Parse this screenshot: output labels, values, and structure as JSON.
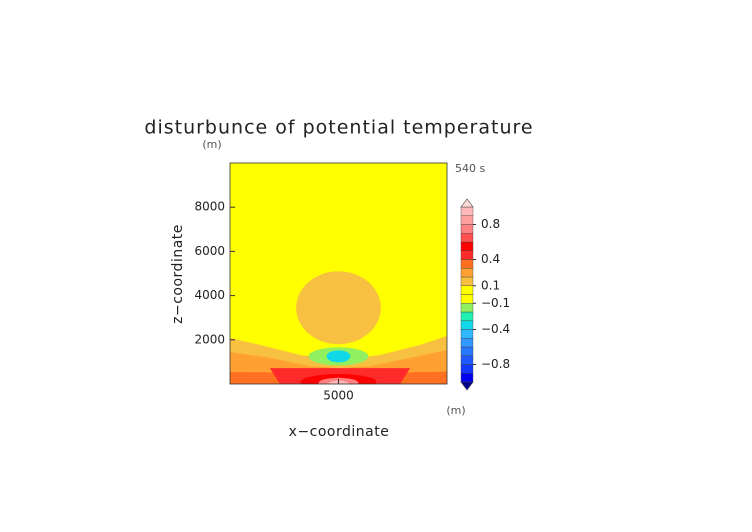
{
  "chart_data": {
    "type": "contour",
    "title": "disturbunce of potential temperature",
    "time_label": "540 s",
    "x_label": "x−coordinate",
    "y_label": "z−coordinate",
    "x_unit": "(m)",
    "y_unit": "(m)",
    "xlim": [
      0,
      10000
    ],
    "ylim": [
      0,
      10000
    ],
    "xticks": [
      5000
    ],
    "yticks": [
      2000,
      4000,
      6000,
      8000
    ],
    "colorbar": {
      "range": [
        -1,
        1
      ],
      "levels": [
        -1,
        -0.9,
        -0.8,
        -0.7,
        -0.6,
        -0.5,
        -0.4,
        -0.3,
        -0.2,
        -0.1,
        0,
        0.1,
        0.2,
        0.3,
        0.4,
        0.5,
        0.6,
        0.7,
        0.8,
        0.9,
        1
      ],
      "colors": [
        "#0000f0",
        "#1038ff",
        "#2058ff",
        "#2878ff",
        "#3098ff",
        "#30b8ff",
        "#10d8e8",
        "#20f0b0",
        "#90f060",
        "#ffff00",
        "#ffff00",
        "#f8c040",
        "#ffa030",
        "#ff7020",
        "#ff2a2a",
        "#ff0000",
        "#ff5050",
        "#ff8080",
        "#ffa0a0",
        "#ffb8b8"
      ],
      "over_color": "#ffd8d8",
      "under_color": "#000090",
      "ticks": [
        0.8,
        0.4,
        0.1,
        {
          "value": -0.1,
          "label": "−0.1"
        },
        {
          "value": -0.4,
          "label": "−0.4"
        },
        {
          "value": -0.8,
          "label": "−0.8"
        }
      ]
    },
    "regions": [
      {
        "value": 0.05,
        "polygon": {
          "x": [
            0,
            10000,
            10000,
            0
          ],
          "z": [
            0,
            0,
            10000,
            10000
          ]
        }
      },
      {
        "value": 0.15,
        "cx": 5000,
        "cz": 3450,
        "rx": 1950,
        "rz": 1650
      },
      {
        "value": 0.15,
        "polygon": {
          "x": [
            0,
            1380,
            3230,
            5070,
            6910,
            8760,
            10000,
            10000,
            0
          ],
          "z": [
            2080,
            1770,
            1310,
            1090,
            1310,
            1770,
            2170,
            0,
            0
          ]
        }
      },
      {
        "value": 0.25,
        "polygon": {
          "x": [
            0,
            1840,
            3690,
            5070,
            6450,
            8300,
            10000,
            10000,
            0
          ],
          "z": [
            1450,
            1180,
            810,
            720,
            810,
            1180,
            1540,
            0,
            0
          ]
        }
      },
      {
        "value": 0.35,
        "polygon": {
          "x": [
            0,
            2000,
            4000,
            5000,
            6000,
            8000,
            10000,
            10000,
            0
          ],
          "z": [
            540,
            520,
            330,
            280,
            330,
            520,
            560,
            0,
            0
          ]
        }
      },
      {
        "value": 0.45,
        "polygon": {
          "x": [
            1840,
            8300,
            7830,
            2300
          ],
          "z": [
            720,
            720,
            0,
            0
          ]
        }
      },
      {
        "value": 0.55,
        "cx": 5000,
        "cz": 90,
        "rx": 1750,
        "rz": 360
      },
      {
        "value": 0.75,
        "cx": 5000,
        "cz": 50,
        "rx": 920,
        "rz": 230
      },
      {
        "value": 0.95,
        "cx": 5000,
        "cz": 20,
        "rx": 460,
        "rz": 140
      },
      {
        "value": -0.15,
        "cx": 5000,
        "cz": 1250,
        "rx": 1380,
        "rz": 410
      },
      {
        "value": -0.35,
        "cx": 5000,
        "cz": 1250,
        "rx": 550,
        "rz": 270
      }
    ]
  }
}
